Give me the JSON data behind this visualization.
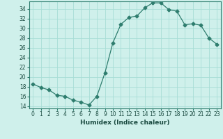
{
  "x": [
    0,
    1,
    2,
    3,
    4,
    5,
    6,
    7,
    8,
    9,
    10,
    11,
    12,
    13,
    14,
    15,
    16,
    17,
    18,
    19,
    20,
    21,
    22,
    23
  ],
  "y": [
    18.5,
    17.8,
    17.3,
    16.2,
    16.0,
    15.2,
    14.8,
    14.2,
    16.0,
    20.8,
    27.0,
    30.8,
    32.2,
    32.5,
    34.2,
    35.2,
    35.2,
    33.8,
    33.5,
    30.7,
    30.9,
    30.6,
    28.0,
    26.7
  ],
  "line_color": "#2e7d6e",
  "marker": "D",
  "marker_size": 2.5,
  "bg_color": "#cff0eb",
  "grid_color": "#a8ddd6",
  "xlabel": "Humidex (Indice chaleur)",
  "xlim": [
    -0.5,
    23.5
  ],
  "ylim": [
    13.5,
    35.5
  ],
  "yticks": [
    14,
    16,
    18,
    20,
    22,
    24,
    26,
    28,
    30,
    32,
    34
  ],
  "xtick_labels": [
    "0",
    "1",
    "2",
    "3",
    "4",
    "5",
    "6",
    "7",
    "8",
    "9",
    "10",
    "11",
    "12",
    "13",
    "14",
    "15",
    "16",
    "17",
    "18",
    "19",
    "20",
    "21",
    "22",
    "23"
  ],
  "label_fontsize": 6.5,
  "tick_fontsize": 5.5
}
